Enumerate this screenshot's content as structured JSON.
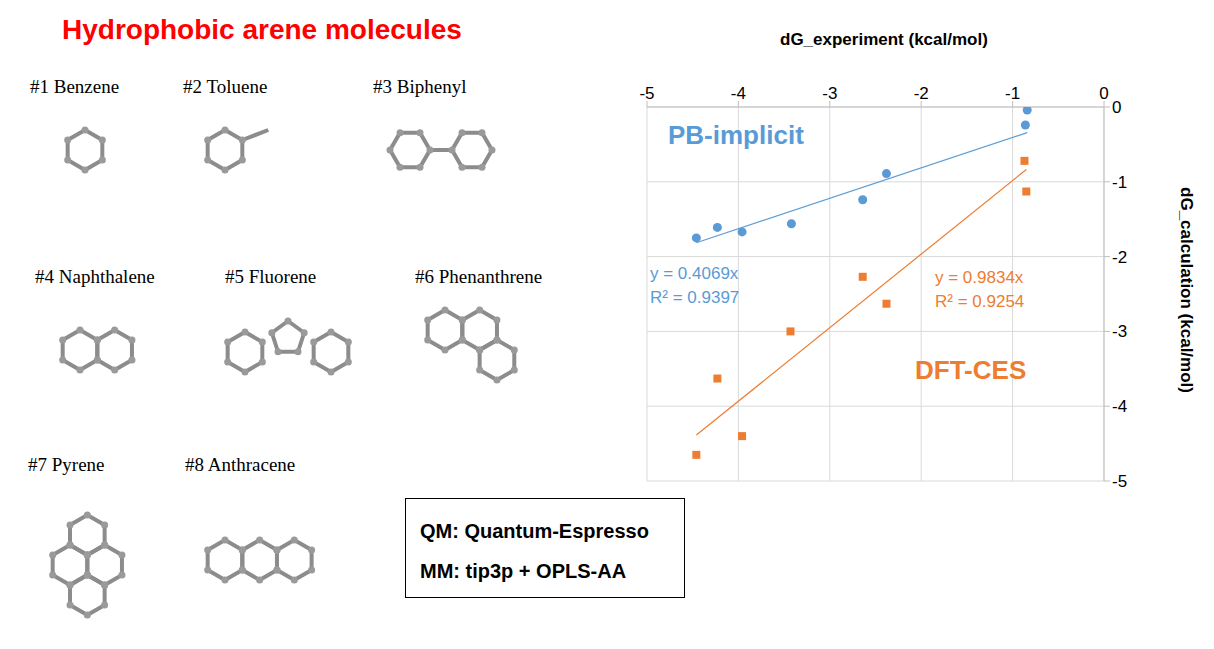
{
  "title": "Hydrophobic arene molecules",
  "molecules": [
    "#1 Benzene",
    "#2 Toluene",
    "#3 Biphenyl",
    "#4 Naphthalene",
    "#5 Fluorene",
    "#6 Phenanthrene",
    "#7 Pyrene",
    "#8 Anthracene"
  ],
  "info": [
    "QM: Quantum-Espresso",
    "MM: tip3p + OPLS-AA"
  ],
  "chart_data": {
    "type": "scatter",
    "x_label": "dG_experiment (kcal/mol)",
    "y_label": "dG_calculation (kcal/mol)",
    "xlim": [
      -5,
      0
    ],
    "xticks": [
      -5,
      -4,
      -3,
      -2,
      -1,
      0
    ],
    "ylim": [
      -5,
      0
    ],
    "yticks": [
      -5,
      -4,
      -3,
      -2,
      -1,
      0
    ],
    "grid": true,
    "series": [
      {
        "name": "PB-implicit",
        "color": "#5b9bd5",
        "marker": "circle",
        "x": [
          -0.84,
          -0.86,
          -2.38,
          -2.64,
          -3.42,
          -3.96,
          -4.23,
          -4.46
        ],
        "values": [
          -0.04,
          -0.24,
          -0.89,
          -1.24,
          -1.56,
          -1.67,
          -1.61,
          -1.75
        ],
        "trendline": {
          "slope": 0.4069,
          "equation": "y = 0.4069x",
          "r2": "R² = 0.9397"
        }
      },
      {
        "name": "DFT-CES",
        "color": "#ed7d31",
        "marker": "square",
        "x": [
          -0.87,
          -0.85,
          -2.64,
          -2.38,
          -3.43,
          -4.23,
          -3.96,
          -4.46
        ],
        "values": [
          -0.72,
          -1.13,
          -2.27,
          -2.63,
          -3.0,
          -3.63,
          -4.4,
          -4.65
        ],
        "trendline": {
          "slope": 0.9834,
          "equation": "y = 0.9834x",
          "r2": "R² = 0.9254"
        }
      }
    ]
  }
}
